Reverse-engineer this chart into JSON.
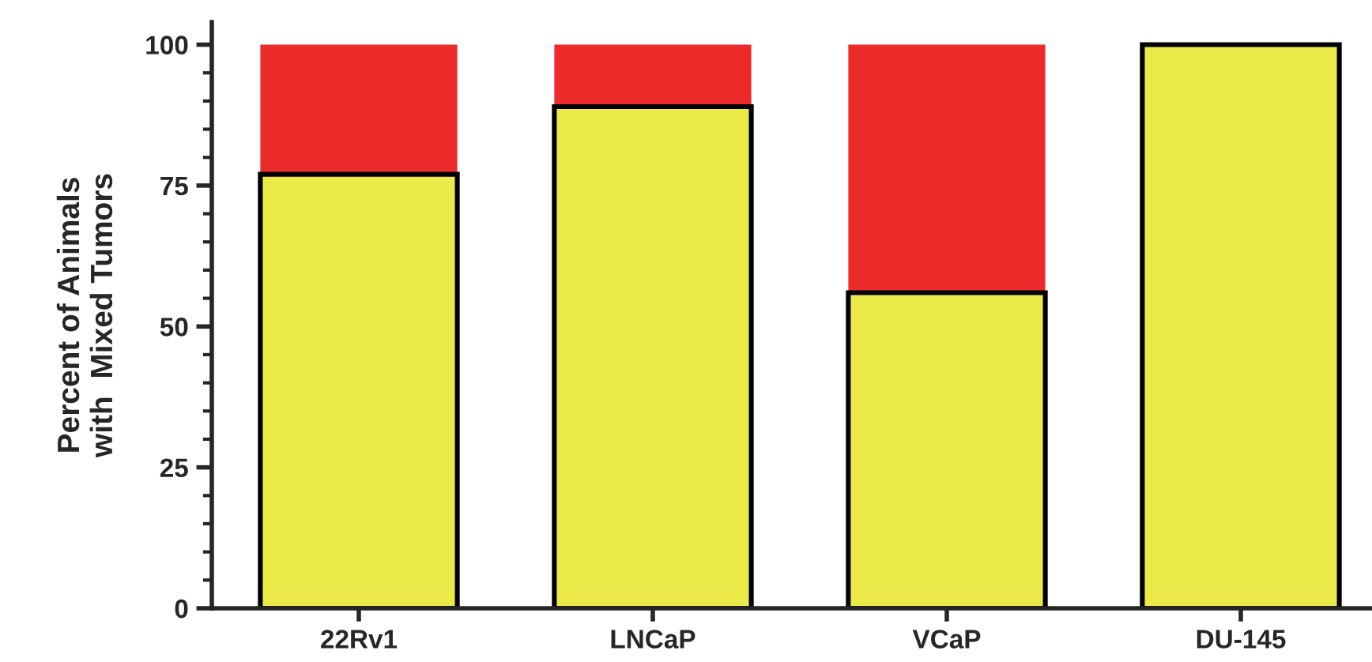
{
  "chart_data": {
    "type": "bar",
    "stacked": true,
    "ylabel": "Percent of Animals\nwith  Mixed Tumors",
    "categories": [
      "22Rv1",
      "LNCaP",
      "VCaP",
      "DU-145"
    ],
    "series": [
      {
        "color": "#ecea48",
        "values": [
          77,
          89,
          56,
          100
        ]
      },
      {
        "color": "#ec2a2a",
        "values": [
          23,
          11,
          44,
          0
        ]
      }
    ],
    "ylim": [
      0,
      104
    ],
    "yticks": [
      0,
      {
        "value": 5,
        "label": null
      },
      {
        "value": 10,
        "label": null
      },
      {
        "value": 15,
        "label": null
      },
      {
        "value": 20,
        "label": null
      },
      25,
      {
        "value": 30,
        "label": null
      },
      {
        "value": 35,
        "label": null
      },
      {
        "value": 40,
        "label": null
      },
      {
        "value": 45,
        "label": null
      },
      50,
      {
        "value": 55,
        "label": null
      },
      {
        "value": 60,
        "label": null
      },
      {
        "value": 65,
        "label": null
      },
      {
        "value": 70,
        "label": null
      },
      75,
      {
        "value": 80,
        "label": null
      },
      {
        "value": 85,
        "label": null
      },
      {
        "value": 90,
        "label": null
      },
      {
        "value": 95,
        "label": null
      },
      100
    ],
    "grid": false,
    "legend": false
  }
}
